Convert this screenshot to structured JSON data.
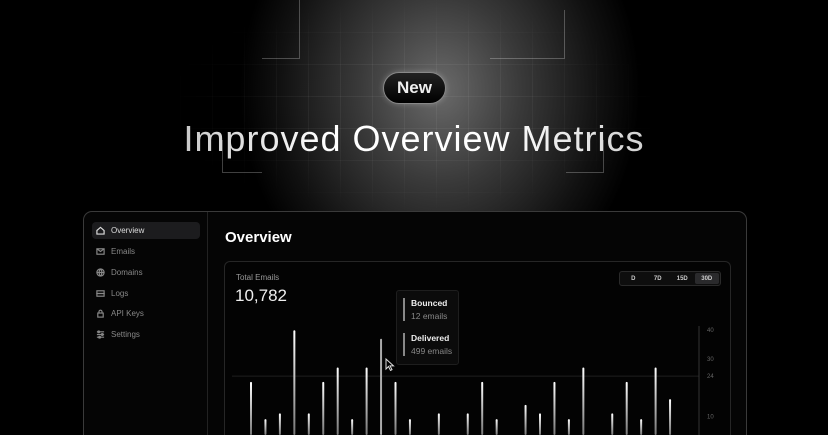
{
  "hero": {
    "badge": "New",
    "headline": "Improved Overview Metrics"
  },
  "sidebar": {
    "items": [
      {
        "label": "Overview",
        "icon": "home-icon",
        "active": true
      },
      {
        "label": "Emails",
        "icon": "mail-icon"
      },
      {
        "label": "Domains",
        "icon": "globe-icon"
      },
      {
        "label": "Logs",
        "icon": "logs-icon"
      },
      {
        "label": "API Keys",
        "icon": "lock-icon"
      },
      {
        "label": "Settings",
        "icon": "sliders-icon"
      }
    ]
  },
  "main": {
    "title": "Overview",
    "card": {
      "label": "Total Emails",
      "value": "10,782",
      "ranges": [
        "D",
        "7D",
        "15D",
        "30D"
      ],
      "selected_range": "30D",
      "tooltip": [
        {
          "title": "Bounced",
          "value": "12 emails"
        },
        {
          "title": "Delivered",
          "value": "499 emails"
        }
      ]
    }
  },
  "chart_data": {
    "type": "bar",
    "ylim": [
      0,
      40
    ],
    "yticks": [
      40,
      30,
      24,
      10
    ],
    "reference_line": 24,
    "values": [
      22,
      9,
      11,
      40,
      11,
      22,
      27,
      9,
      27,
      37,
      22,
      9,
      3,
      11,
      3,
      11,
      22,
      9,
      3,
      14,
      11,
      22,
      9,
      27,
      3,
      11,
      22,
      9,
      27,
      16
    ],
    "highlighted_index": 9
  }
}
